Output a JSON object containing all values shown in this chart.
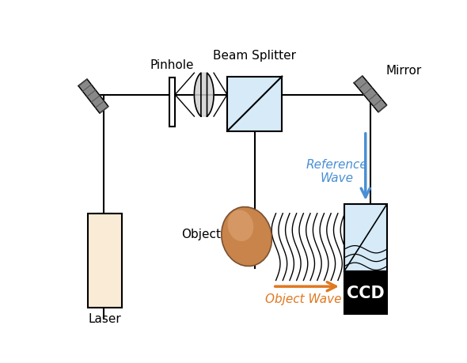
{
  "bg_color": "#ffffff",
  "laser_color": "#FAEBD7",
  "ccd_color": "#111111",
  "ccd_text_color": "#ffffff",
  "bs_fill": "#D6EAF8",
  "mirror_fill": "#888888",
  "object_color1": "#C8844A",
  "object_color2": "#E0A878",
  "ref_wave_color": "#4A8FD4",
  "obj_wave_color": "#E07820",
  "pinhole_label": "Pinhole",
  "bs_label": "Beam Splitter",
  "mirror_label": "Mirror",
  "object_label": "Object",
  "laser_label": "Laser",
  "ref_wave_label": "Reference\nWave",
  "obj_wave_label": "Object Wave",
  "ccd_label": "CCD",
  "lw": 1.5
}
